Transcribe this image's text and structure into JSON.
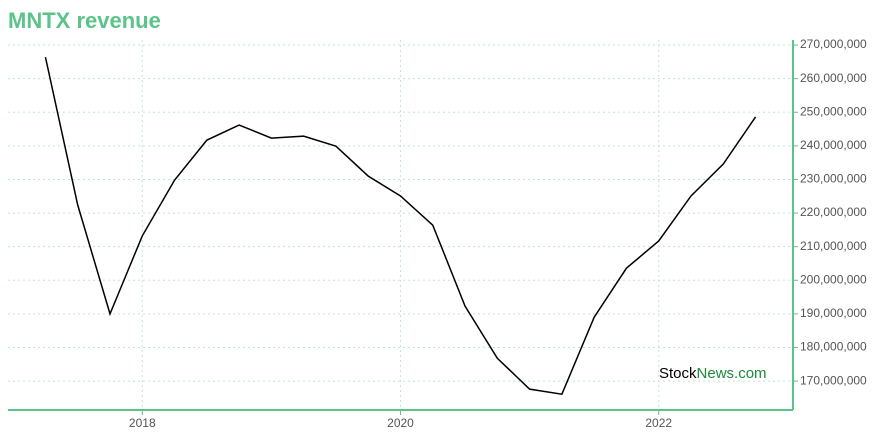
{
  "chart_data": {
    "type": "line",
    "title": "MNTX revenue",
    "watermark": {
      "prefix": "Stock",
      "suffix": "News.com"
    },
    "x": [
      2017.25,
      2017.5,
      2017.75,
      2018,
      2018.25,
      2018.5,
      2018.75,
      2019,
      2019.25,
      2019.5,
      2019.75,
      2020,
      2020.25,
      2020.5,
      2020.75,
      2021,
      2021.25,
      2021.5,
      2021.75,
      2022,
      2022.25,
      2022.5,
      2022.75
    ],
    "series": [
      {
        "color": "#000000",
        "values": [
          266400000,
          222400000,
          190000000,
          213200000,
          229800000,
          241700000,
          246200000,
          242300000,
          242900000,
          239900000,
          231000000,
          225100000,
          216400000,
          192300000,
          176800000,
          167600000,
          166100000,
          189000000,
          203600000,
          211700000,
          225100000,
          234600000,
          248600000
        ]
      }
    ],
    "xlim": [
      2016.96,
      2023.04
    ],
    "xticks": [
      2018,
      2020,
      2022
    ],
    "ylim": [
      161400000,
      271500000
    ],
    "yticks": [
      {
        "value": 170000000,
        "label": "170,000,000"
      },
      {
        "value": 180000000,
        "label": "180,000,000"
      },
      {
        "value": 190000000,
        "label": "190,000,000"
      },
      {
        "value": 200000000,
        "label": "200,000,000"
      },
      {
        "value": 210000000,
        "label": "210,000,000"
      },
      {
        "value": 220000000,
        "label": "220,000,000"
      },
      {
        "value": 230000000,
        "label": "230,000,000"
      },
      {
        "value": 240000000,
        "label": "240,000,000"
      },
      {
        "value": 250000000,
        "label": "250,000,000"
      },
      {
        "value": 260000000,
        "label": "260,000,000"
      },
      {
        "value": 270000000,
        "label": "270,000,000"
      }
    ],
    "grid": true,
    "axis_color": "#5cc48a"
  }
}
